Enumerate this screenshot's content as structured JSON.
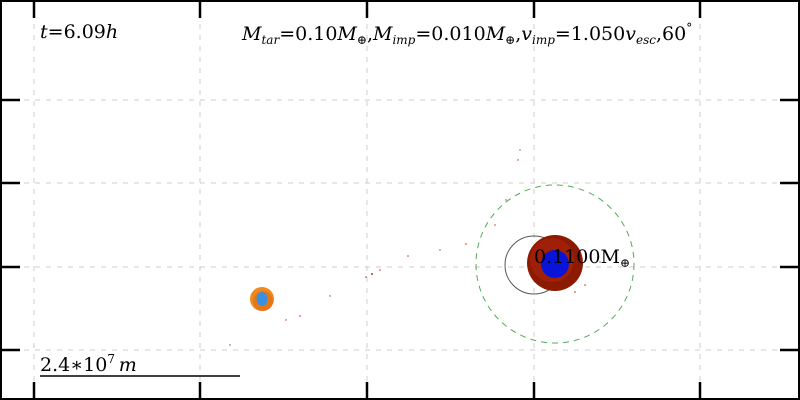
{
  "time_label": {
    "var": "t",
    "eq": "=",
    "value": "6.09",
    "unit": "h"
  },
  "params_label": {
    "m_tar_sym": "M",
    "m_tar_sub": "tar",
    "m_tar_val": "=0.10",
    "m_tar_unit": "M",
    "m_tar_unit_sub": "⊕",
    "m_imp_sym": "M",
    "m_imp_sub": "imp",
    "m_imp_val": "=0.010",
    "m_imp_unit": "M",
    "m_imp_unit_sub": "⊕",
    "v_imp_sym": "v",
    "v_imp_sub": "imp",
    "v_imp_val": "=1.050",
    "v_imp_unit": "v",
    "v_imp_unit_sub": "esc",
    "angle": ",60",
    "angle_unit": "°"
  },
  "mass_label": {
    "value": "0.1100M",
    "unit_sub": "⊕"
  },
  "scale_bar": {
    "mantissa": "2.4",
    "times": "∗10",
    "exponent": "7",
    "unit": "m"
  },
  "colors": {
    "frame": "#000000",
    "grid": "#cccccc",
    "dashed_circle": "#55aa55",
    "thin_circle": "#555555",
    "target_mantle": "#8b1a00",
    "target_mantle_light": "#c0300a",
    "target_core": "#0a14d8",
    "impactor_mantle": "#f08a20",
    "impactor_core": "#3a90e0"
  }
}
